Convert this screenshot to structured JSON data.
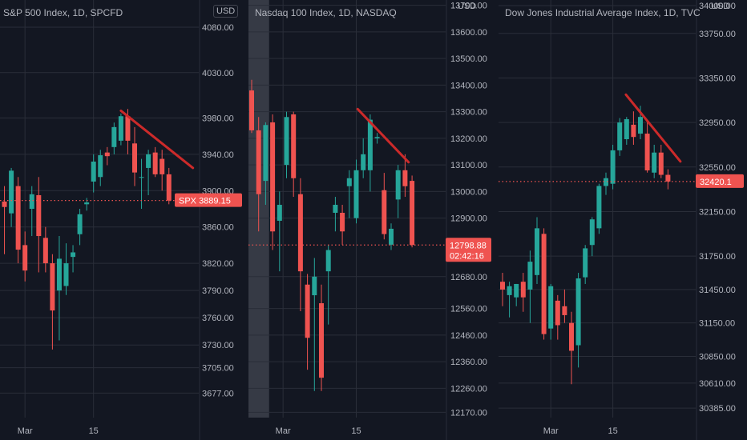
{
  "colors": {
    "up": "#26a69a",
    "down": "#ef5350",
    "trend": "#cc2a2a",
    "grid": "#2a2e39",
    "text": "#b2b5be",
    "bg": "#131722"
  },
  "chart_data": [
    {
      "type": "candlestick",
      "title": "S&P 500 Index, 1D, SPCFD",
      "currency_badge": "USD",
      "ylim": [
        3650,
        4110
      ],
      "yticks": [
        3677,
        3705,
        3730,
        3760,
        3790,
        3820,
        3860,
        3900,
        3940,
        3980,
        4030,
        4080
      ],
      "ytick_labels": [
        "3677.00",
        "3705.00",
        "3730.00",
        "3760.00",
        "3790.00",
        "3820.00",
        "3860.00",
        "3900.00",
        "3940.00",
        "3980.00",
        "4030.00",
        "4080.00"
      ],
      "x_labels": [
        {
          "label": "Mar",
          "index": 4
        },
        {
          "label": "15",
          "index": 14
        }
      ],
      "candles": [
        {
          "o": 3885,
          "h": 3900,
          "l": 3840,
          "c": 3880
        },
        {
          "o": 3888,
          "h": 3905,
          "l": 3830,
          "c": 3882
        },
        {
          "o": 3875,
          "h": 3925,
          "l": 3860,
          "c": 3922
        },
        {
          "o": 3905,
          "h": 3915,
          "l": 3820,
          "c": 3835
        },
        {
          "o": 3840,
          "h": 3855,
          "l": 3800,
          "c": 3812
        },
        {
          "o": 3880,
          "h": 3905,
          "l": 3850,
          "c": 3896
        },
        {
          "o": 3895,
          "h": 3915,
          "l": 3810,
          "c": 3850
        },
        {
          "o": 3848,
          "h": 3860,
          "l": 3810,
          "c": 3820
        },
        {
          "o": 3820,
          "h": 3830,
          "l": 3725,
          "c": 3768
        },
        {
          "o": 3790,
          "h": 3850,
          "l": 3735,
          "c": 3825
        },
        {
          "o": 3795,
          "h": 3842,
          "l": 3785,
          "c": 3820
        },
        {
          "o": 3827,
          "h": 3840,
          "l": 3810,
          "c": 3832
        },
        {
          "o": 3852,
          "h": 3880,
          "l": 3840,
          "c": 3874
        },
        {
          "o": 3885,
          "h": 3892,
          "l": 3878,
          "c": 3887
        },
        {
          "o": 3910,
          "h": 3940,
          "l": 3898,
          "c": 3932
        },
        {
          "o": 3915,
          "h": 3945,
          "l": 3905,
          "c": 3939
        },
        {
          "o": 3942,
          "h": 3948,
          "l": 3928,
          "c": 3938
        },
        {
          "o": 3948,
          "h": 3975,
          "l": 3940,
          "c": 3970
        },
        {
          "o": 3955,
          "h": 3985,
          "l": 3950,
          "c": 3982
        },
        {
          "o": 3982,
          "h": 3990,
          "l": 3940,
          "c": 3955
        },
        {
          "o": 3952,
          "h": 3970,
          "l": 3905,
          "c": 3920
        },
        {
          "o": 3915,
          "h": 3935,
          "l": 3880,
          "c": 3915
        },
        {
          "o": 3925,
          "h": 3945,
          "l": 3895,
          "c": 3940
        },
        {
          "o": 3942,
          "h": 3948,
          "l": 3915,
          "c": 3918
        },
        {
          "o": 3935,
          "h": 3945,
          "l": 3900,
          "c": 3918
        },
        {
          "o": 3918,
          "h": 3925,
          "l": 3885,
          "c": 3889
        }
      ],
      "trendline": [
        {
          "index": 18,
          "price": 3988
        },
        {
          "index": 28.5,
          "price": 3925
        }
      ],
      "price_line": 3889.15,
      "price_label": "SPX  3889.15",
      "countdown": ""
    },
    {
      "type": "candlestick",
      "title": "Nasdaq 100 Index, 1D, NASDAQ",
      "currency_badge": "USD",
      "ylim": [
        12150,
        13720
      ],
      "yticks": [
        12170,
        12260,
        12360,
        12460,
        12560,
        12680,
        12900,
        13000,
        13100,
        13200,
        13300,
        13400,
        13500,
        13600,
        13700
      ],
      "ytick_labels": [
        "12170.00",
        "12260.00",
        "12360.00",
        "12460.00",
        "12560.00",
        "12680.00",
        "12900.00",
        "13000.00",
        "13100.00",
        "13200.00",
        "13300.00",
        "13400.00",
        "13500.00",
        "13600.00",
        "13700.00"
      ],
      "x_labels": [
        {
          "label": "Mar",
          "index": 4.5
        },
        {
          "label": "15",
          "index": 15
        }
      ],
      "highlight_range": [
        0,
        2
      ],
      "candles": [
        {
          "o": 13380,
          "h": 13420,
          "l": 13220,
          "c": 13230
        },
        {
          "o": 13230,
          "h": 13280,
          "l": 12850,
          "c": 12990
        },
        {
          "o": 13040,
          "h": 13260,
          "l": 12950,
          "c": 13250
        },
        {
          "o": 13260,
          "h": 13290,
          "l": 12780,
          "c": 12850
        },
        {
          "o": 12890,
          "h": 13000,
          "l": 12700,
          "c": 12950
        },
        {
          "o": 13100,
          "h": 13300,
          "l": 13050,
          "c": 13280
        },
        {
          "o": 13290,
          "h": 13300,
          "l": 12980,
          "c": 13050
        },
        {
          "o": 12990,
          "h": 13050,
          "l": 12550,
          "c": 12700
        },
        {
          "o": 12650,
          "h": 12690,
          "l": 12330,
          "c": 12450
        },
        {
          "o": 12610,
          "h": 12750,
          "l": 12250,
          "c": 12680
        },
        {
          "o": 12580,
          "h": 12650,
          "l": 12250,
          "c": 12300
        },
        {
          "o": 12700,
          "h": 12800,
          "l": 12500,
          "c": 12780
        },
        {
          "o": 12920,
          "h": 12980,
          "l": 12850,
          "c": 12950
        },
        {
          "o": 12920,
          "h": 12950,
          "l": 12800,
          "c": 12850
        },
        {
          "o": 13020,
          "h": 13080,
          "l": 12900,
          "c": 13050
        },
        {
          "o": 12900,
          "h": 13120,
          "l": 12880,
          "c": 13080
        },
        {
          "o": 13080,
          "h": 13200,
          "l": 13050,
          "c": 13140
        },
        {
          "o": 13080,
          "h": 13290,
          "l": 13000,
          "c": 13270
        },
        {
          "o": 13200,
          "h": 13220,
          "l": 13180,
          "c": 13205
        },
        {
          "o": 13005,
          "h": 13070,
          "l": 12820,
          "c": 12840
        },
        {
          "o": 12800,
          "h": 12880,
          "l": 12780,
          "c": 12860
        },
        {
          "o": 12970,
          "h": 13100,
          "l": 12900,
          "c": 13080
        },
        {
          "o": 13080,
          "h": 13140,
          "l": 12980,
          "c": 13020
        },
        {
          "o": 13040,
          "h": 13060,
          "l": 12790,
          "c": 12799
        }
      ],
      "trendline": [
        {
          "index": 15.2,
          "price": 13310
        },
        {
          "index": 22.5,
          "price": 13110
        }
      ],
      "price_line": 12798.88,
      "price_label": "12798.88",
      "countdown": "02:42:16"
    },
    {
      "type": "candlestick",
      "title": "Dow Jones Industrial Average Index, 1D, TVC",
      "currency_badge": "USD",
      "ylim": [
        30300,
        34050
      ],
      "yticks": [
        30385,
        30610,
        30850,
        31150,
        31450,
        31750,
        32150,
        32550,
        32950,
        33350,
        33750,
        34000
      ],
      "ytick_labels": [
        "30385.00",
        "30610.00",
        "30850.00",
        "31150.00",
        "31450.00",
        "31750.00",
        "32150.00",
        "32550.00",
        "32950.00",
        "33350.00",
        "33750.00",
        "34000.00"
      ],
      "x_labels": [
        {
          "label": "Mar",
          "index": 7
        },
        {
          "label": "15",
          "index": 16
        }
      ],
      "candles": [
        {
          "o": 31520,
          "h": 31600,
          "l": 31300,
          "c": 31450
        },
        {
          "o": 31400,
          "h": 31520,
          "l": 31200,
          "c": 31480
        },
        {
          "o": 31380,
          "h": 31500,
          "l": 31300,
          "c": 31500
        },
        {
          "o": 31520,
          "h": 31600,
          "l": 31250,
          "c": 31380
        },
        {
          "o": 31450,
          "h": 31800,
          "l": 31150,
          "c": 31700
        },
        {
          "o": 31580,
          "h": 32100,
          "l": 31500,
          "c": 32000
        },
        {
          "o": 31950,
          "h": 32000,
          "l": 31000,
          "c": 31050
        },
        {
          "o": 31100,
          "h": 31500,
          "l": 31000,
          "c": 31480
        },
        {
          "o": 31350,
          "h": 31400,
          "l": 31000,
          "c": 31130
        },
        {
          "o": 31300,
          "h": 31450,
          "l": 31150,
          "c": 31220
        },
        {
          "o": 31150,
          "h": 31250,
          "l": 30600,
          "c": 30900
        },
        {
          "o": 30950,
          "h": 31600,
          "l": 30750,
          "c": 31550
        },
        {
          "o": 31560,
          "h": 31850,
          "l": 31500,
          "c": 31820
        },
        {
          "o": 31850,
          "h": 32100,
          "l": 31750,
          "c": 32080
        },
        {
          "o": 32000,
          "h": 32400,
          "l": 31950,
          "c": 32380
        },
        {
          "o": 32380,
          "h": 32500,
          "l": 32300,
          "c": 32450
        },
        {
          "o": 32400,
          "h": 32750,
          "l": 32350,
          "c": 32700
        },
        {
          "o": 32700,
          "h": 32990,
          "l": 32650,
          "c": 32950
        },
        {
          "o": 32800,
          "h": 33000,
          "l": 32750,
          "c": 32980
        },
        {
          "o": 32930,
          "h": 33050,
          "l": 32750,
          "c": 32820
        },
        {
          "o": 32850,
          "h": 33100,
          "l": 32800,
          "c": 33000
        },
        {
          "o": 32850,
          "h": 32950,
          "l": 32500,
          "c": 32520
        },
        {
          "o": 32500,
          "h": 32750,
          "l": 32450,
          "c": 32680
        },
        {
          "o": 32680,
          "h": 32750,
          "l": 32450,
          "c": 32480
        },
        {
          "o": 32480,
          "h": 32530,
          "l": 32350,
          "c": 32420
        }
      ],
      "trendline": [
        {
          "index": 17.9,
          "price": 33200
        },
        {
          "index": 25.8,
          "price": 32600
        }
      ],
      "price_line": 32420.1,
      "price_label": "32420.1",
      "countdown": ""
    }
  ]
}
